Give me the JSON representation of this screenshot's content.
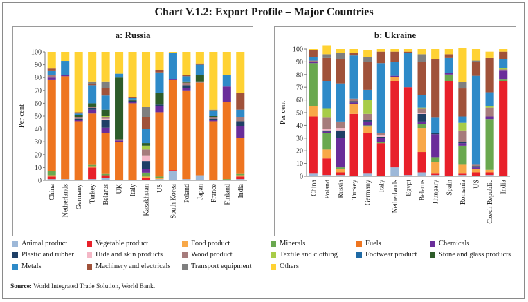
{
  "title": "Chart V.1.2: Export Profile – Major Countries",
  "source_label": "Source:",
  "source_text": "World Integrated Trade Solution, World Bank.",
  "colors": [
    "#9db8d8",
    "#e8202a",
    "#f8a848",
    "#6aa84f",
    "#ee7520",
    "#6a2d9a",
    "#1f3f66",
    "#f4b7c6",
    "#a67c7c",
    "#a8cc48",
    "#1f6aa5",
    "#2e5c2a",
    "#2e8ac8",
    "#a0523a",
    "#7f7f7f",
    "#ffd233"
  ],
  "chart_data": [
    {
      "type": "bar",
      "stacked": true,
      "title": "a: Russia",
      "ylabel": "Per cent",
      "ylim": [
        0,
        100
      ],
      "yticks": [
        0,
        10,
        20,
        30,
        40,
        50,
        60,
        70,
        80,
        90,
        100
      ],
      "categories": [
        "China",
        "Netherlands",
        "Germany",
        "Turkey",
        "Belarus",
        "UK",
        "Italy",
        "Kazakhstan",
        "US",
        "South Korea",
        "Poland",
        "Japan",
        "France",
        "Finland",
        "India"
      ],
      "series": [
        {
          "name": "Animal product",
          "values": [
            1,
            1,
            0,
            1,
            2,
            0,
            0,
            0,
            1,
            7,
            1,
            4,
            0,
            0,
            1
          ]
        },
        {
          "name": "Vegetable product",
          "values": [
            2,
            0,
            0,
            9,
            2,
            0,
            0,
            2,
            0,
            1,
            0,
            0,
            0,
            0,
            2
          ]
        },
        {
          "name": "Food product",
          "values": [
            1,
            0,
            0,
            1,
            0,
            0,
            0,
            1,
            1,
            0,
            0,
            0,
            0,
            0,
            1
          ]
        },
        {
          "name": "Minerals",
          "values": [
            3,
            0,
            0,
            1,
            1,
            0,
            0,
            3,
            1,
            0,
            0,
            0,
            0,
            1,
            1
          ]
        },
        {
          "name": "Fuels",
          "values": [
            71,
            80,
            46,
            40,
            32,
            30,
            60,
            0,
            50,
            70,
            69,
            72,
            46,
            60,
            28
          ]
        },
        {
          "name": "Chemicals",
          "values": [
            2,
            1,
            1,
            3,
            4,
            1,
            1,
            3,
            5,
            1,
            2,
            0,
            1,
            12,
            9
          ]
        },
        {
          "name": "Plastic and rubber",
          "values": [
            0,
            0,
            1,
            1,
            6,
            0,
            1,
            6,
            1,
            0,
            2,
            0,
            1,
            0,
            4
          ]
        },
        {
          "name": "Hide and skin products",
          "values": [
            0,
            0,
            0,
            0,
            1,
            0,
            0,
            4,
            0,
            0,
            0,
            0,
            0,
            0,
            0
          ]
        },
        {
          "name": "Wood product",
          "values": [
            2,
            0,
            1,
            1,
            1,
            1,
            0,
            5,
            0,
            0,
            2,
            1,
            1,
            0,
            3
          ]
        },
        {
          "name": "Textile and clothing",
          "values": [
            0,
            0,
            0,
            0,
            1,
            0,
            0,
            3,
            0,
            0,
            0,
            0,
            0,
            0,
            0
          ]
        },
        {
          "name": "Footwear product",
          "values": [
            0,
            0,
            0,
            0,
            0,
            0,
            0,
            0,
            0,
            0,
            0,
            0,
            0,
            0,
            0
          ]
        },
        {
          "name": "Stone and glass products",
          "values": [
            0,
            0,
            2,
            3,
            5,
            48,
            1,
            2,
            9,
            0,
            1,
            5,
            1,
            0,
            0
          ]
        },
        {
          "name": "Metals",
          "values": [
            3,
            11,
            1,
            14,
            11,
            3,
            1,
            11,
            16,
            20,
            4,
            8,
            4,
            9,
            6
          ]
        },
        {
          "name": "Machinery and electricals",
          "values": [
            2,
            0,
            1,
            1,
            6,
            0,
            1,
            9,
            2,
            0,
            1,
            1,
            0,
            0,
            13
          ]
        },
        {
          "name": "Transport equipment",
          "values": [
            0,
            0,
            0,
            2,
            5,
            0,
            0,
            8,
            0,
            0,
            0,
            0,
            1,
            0,
            0
          ]
        },
        {
          "name": "Others",
          "values": [
            13,
            7,
            47,
            23,
            23,
            17,
            35,
            43,
            14,
            1,
            18,
            9,
            45,
            18,
            32
          ]
        }
      ]
    },
    {
      "type": "bar",
      "stacked": true,
      "title": "b: Ukraine",
      "ylabel": "Per cent",
      "ylim": [
        0,
        100
      ],
      "yticks": [
        0,
        10,
        20,
        30,
        40,
        50,
        60,
        70,
        80,
        90,
        100
      ],
      "categories": [
        "China",
        "Poland",
        "Russia",
        "Turkey",
        "Germany",
        "Italy",
        "Netherlands",
        "Egypt",
        "Belarus",
        "Hungary",
        "Spain",
        "Romania",
        "US",
        "Czech Republic",
        "India"
      ],
      "series": [
        {
          "name": "Animal product",
          "values": [
            2,
            1,
            1,
            0,
            2,
            0,
            7,
            1,
            3,
            1,
            0,
            1,
            0,
            1,
            0
          ]
        },
        {
          "name": "Vegetable product",
          "values": [
            45,
            13,
            2,
            49,
            32,
            26,
            68,
            69,
            16,
            1,
            75,
            1,
            3,
            2,
            75
          ]
        },
        {
          "name": "Food product",
          "values": [
            8,
            7,
            3,
            8,
            5,
            0,
            3,
            0,
            19,
            9,
            0,
            7,
            3,
            2,
            0
          ]
        },
        {
          "name": "Minerals",
          "values": [
            34,
            13,
            1,
            0,
            1,
            1,
            0,
            0,
            3,
            4,
            5,
            15,
            0,
            40,
            1
          ]
        },
        {
          "name": "Fuels",
          "values": [
            0,
            0,
            0,
            0,
            0,
            0,
            0,
            0,
            0,
            0,
            0,
            0,
            0,
            0,
            0
          ]
        },
        {
          "name": "Chemicals",
          "values": [
            1,
            1,
            23,
            1,
            3,
            3,
            1,
            0,
            2,
            18,
            1,
            2,
            1,
            2,
            7
          ]
        },
        {
          "name": "Plastic and rubber",
          "values": [
            0,
            1,
            6,
            1,
            1,
            1,
            0,
            0,
            6,
            1,
            0,
            1,
            1,
            0,
            0
          ]
        },
        {
          "name": "Hide and skin products",
          "values": [
            0,
            1,
            2,
            0,
            0,
            1,
            0,
            0,
            1,
            0,
            0,
            0,
            0,
            0,
            0
          ]
        },
        {
          "name": "Wood product",
          "values": [
            1,
            9,
            5,
            2,
            5,
            2,
            0,
            0,
            3,
            0,
            0,
            9,
            1,
            7,
            1
          ]
        },
        {
          "name": "Textile and clothing",
          "values": [
            0,
            7,
            0,
            0,
            11,
            0,
            0,
            0,
            1,
            0,
            0,
            6,
            0,
            1,
            1
          ]
        },
        {
          "name": "Footwear product",
          "values": [
            0,
            0,
            0,
            0,
            0,
            0,
            0,
            0,
            0,
            0,
            0,
            0,
            0,
            0,
            0
          ]
        },
        {
          "name": "Stone and glass products",
          "values": [
            0,
            0,
            0,
            0,
            0,
            0,
            0,
            0,
            0,
            0,
            0,
            0,
            0,
            0,
            0
          ]
        },
        {
          "name": "Metals",
          "values": [
            3,
            22,
            30,
            34,
            8,
            55,
            11,
            27,
            10,
            12,
            12,
            5,
            70,
            11,
            7
          ]
        },
        {
          "name": "Machinery and electricals",
          "values": [
            5,
            18,
            19,
            2,
            22,
            9,
            8,
            1,
            26,
            46,
            3,
            22,
            11,
            27,
            6
          ]
        },
        {
          "name": "Transport equipment",
          "values": [
            0,
            3,
            5,
            0,
            4,
            0,
            0,
            0,
            6,
            0,
            0,
            5,
            1,
            0,
            0
          ]
        },
        {
          "name": "Others",
          "values": [
            1,
            7,
            3,
            3,
            5,
            2,
            2,
            2,
            4,
            8,
            4,
            27,
            9,
            5,
            2
          ]
        }
      ]
    }
  ]
}
